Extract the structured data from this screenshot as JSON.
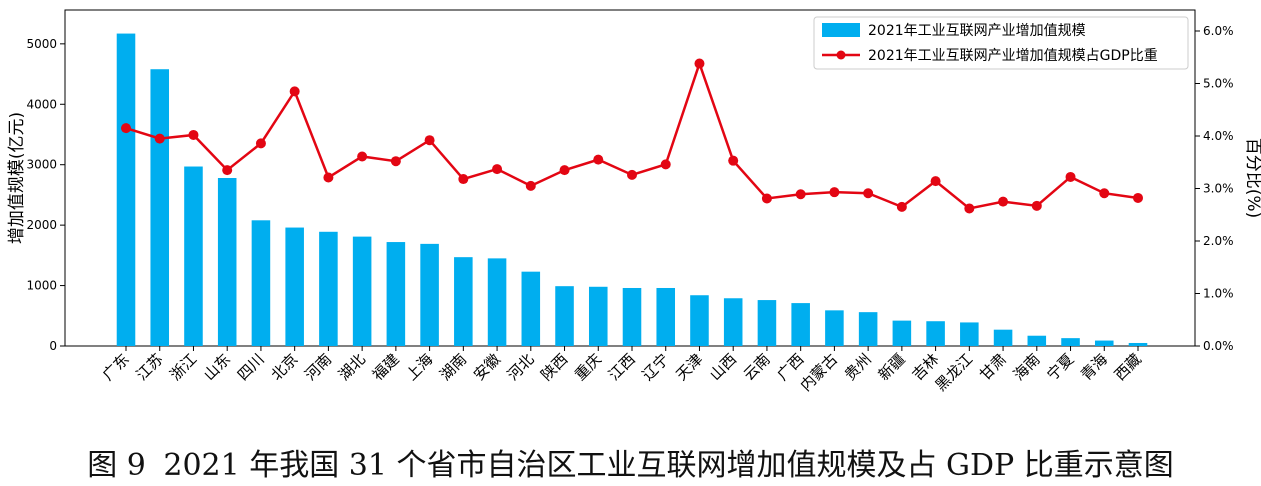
{
  "figure": {
    "number": "图 9",
    "caption": "2021 年我国 31 个省市自治区工业互联网增加值规模及占 GDP 比重示意图"
  },
  "colors": {
    "bar": "#00AEEF",
    "line": "#E30613",
    "axis": "#000000"
  },
  "chart_data": {
    "type": "bar",
    "categories": [
      "广东",
      "江苏",
      "浙江",
      "山东",
      "四川",
      "北京",
      "河南",
      "湖北",
      "福建",
      "上海",
      "湖南",
      "安徽",
      "河北",
      "陕西",
      "重庆",
      "江西",
      "辽宁",
      "天津",
      "山西",
      "云南",
      "广西",
      "内蒙古",
      "贵州",
      "新疆",
      "吉林",
      "黑龙江",
      "甘肃",
      "海南",
      "宁夏",
      "青海",
      "西藏"
    ],
    "series": [
      {
        "name": "2021年工业互联网产业增加值规模",
        "type": "bar",
        "axis": "left",
        "values": [
          5170,
          4580,
          2970,
          2780,
          2080,
          1960,
          1890,
          1810,
          1720,
          1690,
          1470,
          1450,
          1230,
          990,
          980,
          960,
          960,
          840,
          790,
          760,
          710,
          590,
          560,
          420,
          410,
          390,
          270,
          170,
          130,
          90,
          50
        ]
      },
      {
        "name": "2021年工业互联网产业增加值规模占GDP比重",
        "type": "line",
        "axis": "right",
        "values": [
          4.15,
          3.95,
          4.02,
          3.35,
          3.86,
          4.85,
          3.21,
          3.61,
          3.52,
          3.92,
          3.18,
          3.37,
          3.05,
          3.35,
          3.55,
          3.26,
          3.46,
          5.38,
          3.53,
          2.81,
          2.89,
          2.93,
          2.91,
          2.65,
          3.14,
          2.62,
          2.75,
          2.67,
          3.22,
          2.91,
          2.82
        ]
      }
    ],
    "ylabel": "增加值规模(亿元)",
    "ylabel_right": "百分比(%)",
    "ylim": [
      0,
      5560
    ],
    "ylim_right": [
      0,
      6.4
    ],
    "yticks": [
      0,
      1000,
      2000,
      3000,
      4000,
      5000
    ],
    "yticks_right": [
      "0.0%",
      "1.0%",
      "2.0%",
      "3.0%",
      "4.0%",
      "5.0%",
      "6.0%"
    ],
    "yticks_right_values": [
      0,
      1,
      2,
      3,
      4,
      5,
      6
    ],
    "legend_position": "top-right",
    "grid": false
  }
}
